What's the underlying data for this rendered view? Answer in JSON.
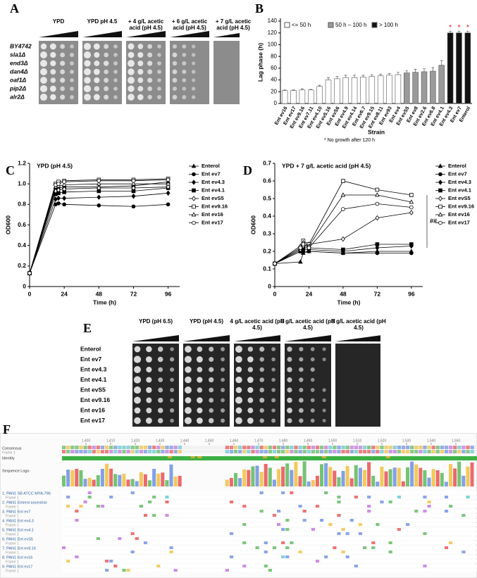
{
  "panel_labels": [
    "A",
    "B",
    "C",
    "D",
    "E",
    "F"
  ],
  "spot_assay_a": {
    "conditions": [
      "YPD",
      "YPD pH 4.5",
      "+ 4 g/L acetic acid (pH 4.5)",
      "+ 6 g/L acetic acid (pH 4.5)",
      "+ 7 g/L acetic acid (pH 4.5)"
    ],
    "strains": [
      "BY4742",
      "sla1Δ",
      "end3Δ",
      "dan4Δ",
      "oaf1Δ",
      "pip2Δ",
      "alr2Δ"
    ]
  },
  "spot_assay_e": {
    "conditions": [
      "YPD (pH 6.5)",
      "YPD (pH 4.5)",
      "4 g/L acetic acid (pH 4.5)",
      "6 g/L acetic acid (pH 4.5)",
      "8 g/L acetic acid (pH 4.5)"
    ],
    "strains": [
      "Enterol",
      "Ent ev7",
      "Ent ev4.3",
      "Ent ev4.1",
      "Ent evS5",
      "Ent ev9.16",
      "Ent ev16",
      "Ent ev17"
    ]
  },
  "alignment": {
    "ruler": [
      "1,400",
      "1,410",
      "1,420",
      "1,430",
      "1,440",
      "1,450",
      "1,460",
      "1,470",
      "1,480",
      "1,490",
      "1,500",
      "1,510",
      "1,520",
      "1,530",
      "1,540",
      "1,550"
    ],
    "header_rows": [
      {
        "label": "Consensus",
        "sub": "Frame 1"
      },
      {
        "label": "Identity"
      },
      {
        "label": "Sequence Logo"
      }
    ],
    "sequences": [
      {
        "label": "1. PAN1 SB ATCC MYA-796",
        "sub": "Frame 1"
      },
      {
        "label": "2. PAN1 Enterol ancestral",
        "sub": "Frame 1"
      },
      {
        "label": "3. PAN1 Ent ev7",
        "sub": "Frame 1"
      },
      {
        "label": "4. PAN1 Ent ev4.3",
        "sub": "Frame 1"
      },
      {
        "label": "5. PAN1 Ent ev4.1",
        "sub": "Frame 1"
      },
      {
        "label": "6. PAN1 Ent evS5",
        "sub": "Frame 1"
      },
      {
        "label": "7. PAN1 Ent ev9.16",
        "sub": "Frame 1"
      },
      {
        "label": "8. PAN1 Ent ev16",
        "sub": "Frame 1"
      },
      {
        "label": "9. PAN1 Ent ev17",
        "sub": "Frame 1"
      }
    ]
  },
  "chart_data": [
    {
      "type": "bar",
      "ylabel": "Lag phase (h)",
      "xlabel": "Strain",
      "bar_marker": "*",
      "note": "* No growth after 120 h",
      "categories": [
        "Ent ev16",
        "Ent ev17",
        "Ent ev9.16",
        "Ent ev7.11",
        "Ent ev4.10",
        "Ent ev5.16",
        "Ent evS6",
        "Ent ev4.9",
        "Ent ev4.14",
        "Ent ev6.7",
        "Ent ev9.15",
        "Ent ev8.11",
        "Ent ev93",
        "Ent ev4",
        "Ent evS5",
        "Ent ev8",
        "Ent ev2.6",
        "Ent ev6.8",
        "Ent ev4.1",
        "Ent ev4.3",
        "Ent ev7",
        "Enterol"
      ],
      "series": [
        {
          "name": "<= 50 h",
          "color": "#ffffff",
          "values": [
            22,
            22,
            23,
            23,
            29,
            40,
            42,
            44,
            44,
            45,
            46,
            47,
            48,
            49,
            null,
            null,
            null,
            null,
            null,
            null,
            null,
            null
          ],
          "errors": [
            1,
            1,
            2,
            1,
            2,
            4,
            4,
            4,
            4,
            3,
            3,
            3,
            3,
            4,
            null,
            null,
            null,
            null,
            null,
            null,
            null,
            null
          ]
        },
        {
          "name": "50 h – 100 h",
          "color": "#9a9a9a",
          "values": [
            null,
            null,
            null,
            null,
            null,
            null,
            null,
            null,
            null,
            null,
            null,
            null,
            null,
            null,
            52,
            53,
            54,
            55,
            65,
            null,
            null,
            null
          ],
          "errors": [
            null,
            null,
            null,
            null,
            null,
            null,
            null,
            null,
            null,
            null,
            null,
            null,
            null,
            null,
            4,
            5,
            5,
            6,
            8,
            null,
            null,
            null
          ]
        },
        {
          "name": "> 100 h",
          "color": "#111111",
          "values": [
            null,
            null,
            null,
            null,
            null,
            null,
            null,
            null,
            null,
            null,
            null,
            null,
            null,
            null,
            null,
            null,
            null,
            null,
            null,
            120,
            120,
            120
          ],
          "errors": [
            null,
            null,
            null,
            null,
            null,
            null,
            null,
            null,
            null,
            null,
            null,
            null,
            null,
            null,
            null,
            null,
            null,
            null,
            null,
            3,
            3,
            3
          ]
        }
      ],
      "ylim": [
        0,
        140
      ],
      "yticks": [
        0,
        20,
        40,
        60,
        80,
        100,
        120,
        140
      ]
    },
    {
      "type": "line",
      "title": "YPD (pH 4.5)",
      "xlabel": "Time (h)",
      "ylabel": "OD600",
      "x": [
        0,
        18,
        20,
        24,
        48,
        72,
        96
      ],
      "xlim": [
        0,
        104
      ],
      "xticks": [
        0,
        24,
        48,
        72,
        96
      ],
      "ylim": [
        0,
        1.2
      ],
      "yticks": [
        0,
        0.2,
        0.4,
        0.6,
        0.8,
        {
          "value": 1,
          "label": "1.0"
        },
        1.2
      ],
      "series": [
        {
          "name": "Enterol",
          "color": "#000000",
          "marker": "triangle",
          "filled": true,
          "values": [
            0.13,
            0.95,
            0.96,
            0.97,
            0.97,
            0.98,
            1.02
          ]
        },
        {
          "name": "Ent ev7",
          "color": "#000000",
          "marker": "circle",
          "filled": true,
          "values": [
            0.13,
            0.8,
            0.81,
            0.8,
            0.79,
            0.78,
            0.8
          ]
        },
        {
          "name": "Ent ev4.3",
          "color": "#000000",
          "marker": "diamond",
          "filled": true,
          "values": [
            0.13,
            0.85,
            0.86,
            0.86,
            0.87,
            0.88,
            0.91
          ]
        },
        {
          "name": "Ent ev4.1",
          "color": "#000000",
          "marker": "square",
          "filled": true,
          "values": [
            0.13,
            0.9,
            0.91,
            0.92,
            0.93,
            0.93,
            0.96
          ]
        },
        {
          "name": "Ent evS5",
          "color": "#000000",
          "marker": "diamond",
          "filled": false,
          "values": [
            0.13,
            0.93,
            0.94,
            0.95,
            0.96,
            0.96,
            0.97
          ]
        },
        {
          "name": "Ent ev9.16",
          "color": "#000000",
          "marker": "square",
          "filled": false,
          "values": [
            0.13,
            1,
            1.02,
            1.03,
            1.04,
            1.04,
            1.05
          ]
        },
        {
          "name": "Ent ev16",
          "color": "#000000",
          "marker": "triangle",
          "filled": false,
          "values": [
            0.13,
            0.97,
            0.98,
            0.99,
            1,
            1,
            1
          ]
        },
        {
          "name": "Ent ev17",
          "color": "#000000",
          "marker": "circle",
          "filled": false,
          "values": [
            0.13,
            0.99,
            1,
            1.02,
            1.03,
            1.03,
            1.04
          ]
        }
      ]
    },
    {
      "type": "line",
      "title": "YPD + 7 g/L acetic acid (pH 4.5)",
      "xlabel": "Time (h)",
      "ylabel": "OD600",
      "annotation": "##",
      "x": [
        0,
        18,
        20,
        24,
        48,
        72,
        96
      ],
      "xlim": [
        0,
        104
      ],
      "xticks": [
        0,
        24,
        48,
        72,
        96
      ],
      "ylim": [
        0,
        0.7
      ],
      "yticks": [
        0,
        0.1,
        0.2,
        0.3,
        0.4,
        0.5,
        0.6,
        0.7
      ],
      "series": [
        {
          "name": "Enterol",
          "color": "#000000",
          "marker": "triangle",
          "filled": true,
          "values": [
            0.13,
            0.14,
            0.19,
            0.2,
            0.19,
            0.2,
            0.2
          ]
        },
        {
          "name": "Ent ev7",
          "color": "#000000",
          "marker": "circle",
          "filled": true,
          "values": [
            0.13,
            0.2,
            0.2,
            0.2,
            0.19,
            0.19,
            0.19
          ]
        },
        {
          "name": "Ent ev4.3",
          "color": "#000000",
          "marker": "diamond",
          "filled": true,
          "values": [
            0.13,
            0.21,
            0.21,
            0.21,
            0.2,
            0.22,
            0.23
          ]
        },
        {
          "name": "Ent ev4.1",
          "color": "#000000",
          "marker": "square",
          "filled": true,
          "values": [
            0.13,
            0.2,
            0.22,
            0.22,
            0.21,
            0.24,
            0.24
          ]
        },
        {
          "name": "Ent evS5",
          "color": "#000000",
          "marker": "diamond",
          "filled": false,
          "values": [
            0.13,
            0.21,
            0.23,
            0.24,
            0.27,
            0.39,
            0.42
          ]
        },
        {
          "name": "Ent ev9.16",
          "color": "#000000",
          "marker": "square",
          "filled": false,
          "values": [
            0.13,
            0.22,
            0.26,
            0.24,
            0.6,
            0.55,
            0.52
          ]
        },
        {
          "name": "Ent ev16",
          "color": "#000000",
          "marker": "triangle",
          "filled": false,
          "values": [
            0.13,
            0.23,
            0.25,
            0.23,
            0.52,
            0.52,
            0.48
          ]
        },
        {
          "name": "Ent ev17",
          "color": "#000000",
          "marker": "circle",
          "filled": false,
          "values": [
            0.13,
            0.22,
            0.24,
            0.22,
            0.44,
            0.47,
            0.45
          ]
        }
      ]
    }
  ]
}
